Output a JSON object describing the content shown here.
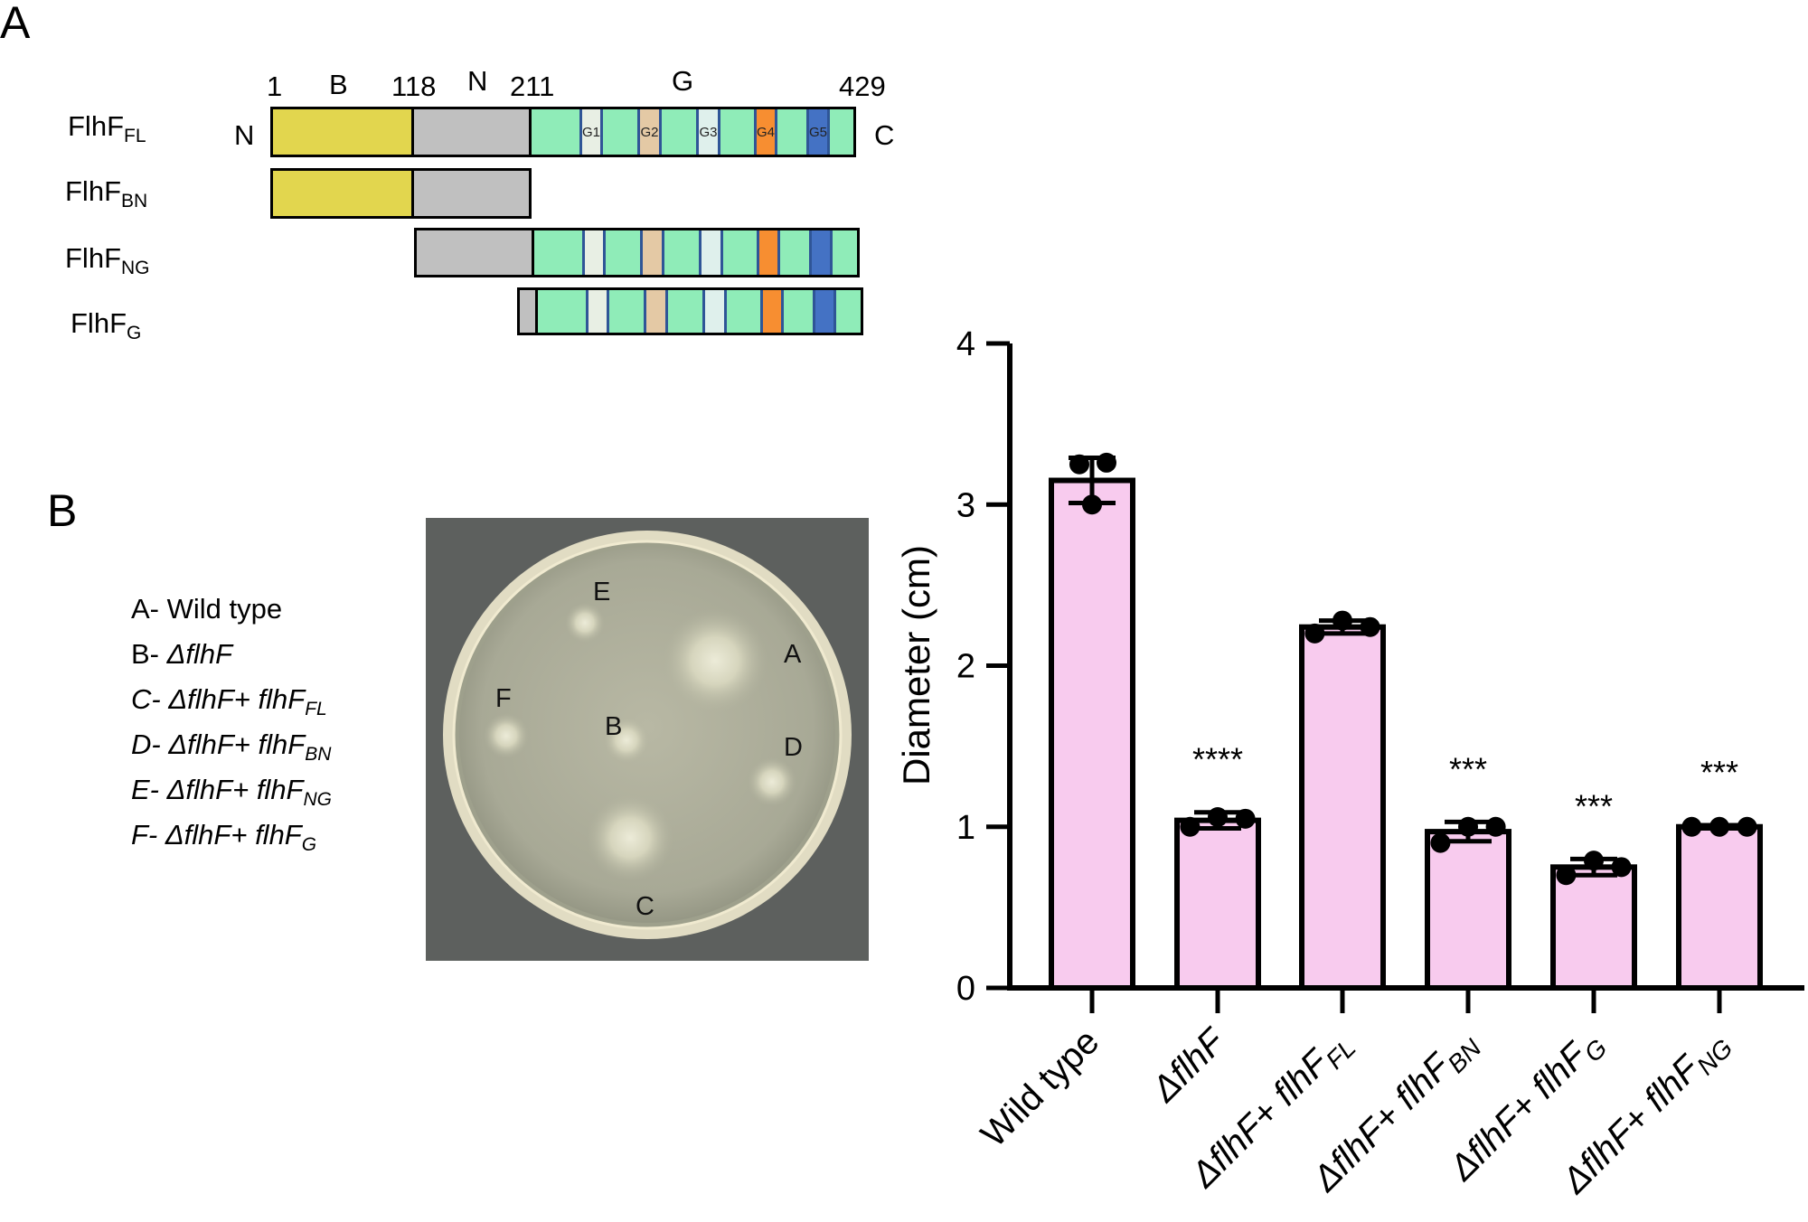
{
  "panel_a": {
    "letter": "A",
    "proteins": [
      {
        "name": "FlhF",
        "sub": "FL"
      },
      {
        "name": "FlhF",
        "sub": "BN"
      },
      {
        "name": "FlhF",
        "sub": "NG"
      },
      {
        "name": "FlhF",
        "sub": "G"
      }
    ],
    "positions": [
      "1",
      "118",
      "211",
      "429"
    ],
    "domain_labels": [
      "B",
      "N",
      "G"
    ],
    "terminals": {
      "n": "N",
      "c": "C"
    },
    "motifs": [
      "G1",
      "G2",
      "G3",
      "G4",
      "G5"
    ],
    "colors": {
      "B": "#e2d64e",
      "N": "#c0c0c0",
      "G": "#8fecb8",
      "G1": "#e8efe4",
      "G2": "#e4c9a5",
      "G3": "#dff0ec",
      "G4": "#f78e31",
      "G5": "#4472c4"
    }
  },
  "panel_b": {
    "letter": "B",
    "legend": [
      {
        "prefix": "A- ",
        "text": "Wild type",
        "sub": "",
        "italic": false
      },
      {
        "prefix": "B- ",
        "text": "ΔflhF",
        "sub": "",
        "italic": true
      },
      {
        "prefix": "C- ",
        "text": "ΔflhF+ flhF",
        "sub": "FL",
        "italic": true
      },
      {
        "prefix": "D- ",
        "text": "ΔflhF+ flhF",
        "sub": "BN",
        "italic": true
      },
      {
        "prefix": "E- ",
        "text": "ΔflhF+ flhF",
        "sub": "NG",
        "italic": true
      },
      {
        "prefix": "F- ",
        "text": "ΔflhF+ flhF",
        "sub": "G",
        "italic": true
      }
    ],
    "plate_labels": [
      "A",
      "B",
      "C",
      "D",
      "E",
      "F"
    ]
  },
  "chart_data": {
    "type": "bar",
    "ylabel": "Diameter (cm)",
    "ylim": [
      0,
      4
    ],
    "yticks": [
      "0",
      "1",
      "2",
      "3",
      "4"
    ],
    "bar_color": "#f8cbee",
    "categories": [
      {
        "main": "Wild type",
        "sub": ""
      },
      {
        "main": "ΔflhF",
        "sub": ""
      },
      {
        "main": "ΔflhF+ flhF",
        "sub": "FL"
      },
      {
        "main": "ΔflhF+ flhF",
        "sub": "BN"
      },
      {
        "main": "ΔflhF+ flhF",
        "sub": "G"
      },
      {
        "main": "ΔflhF+ flhF",
        "sub": "NG"
      }
    ],
    "values": [
      3.15,
      1.04,
      2.24,
      0.97,
      0.75,
      1.0
    ],
    "errors": [
      0.14,
      0.05,
      0.04,
      0.06,
      0.05,
      0.01
    ],
    "points": [
      [
        3.25,
        3.26,
        3.0
      ],
      [
        1.0,
        1.06,
        1.05
      ],
      [
        2.2,
        2.28,
        2.24
      ],
      [
        0.9,
        1.0,
        1.0
      ],
      [
        0.7,
        0.79,
        0.75
      ],
      [
        1.0,
        1.0,
        1.0
      ]
    ],
    "significance": [
      "",
      "****",
      "",
      "***",
      "***",
      "***"
    ]
  }
}
